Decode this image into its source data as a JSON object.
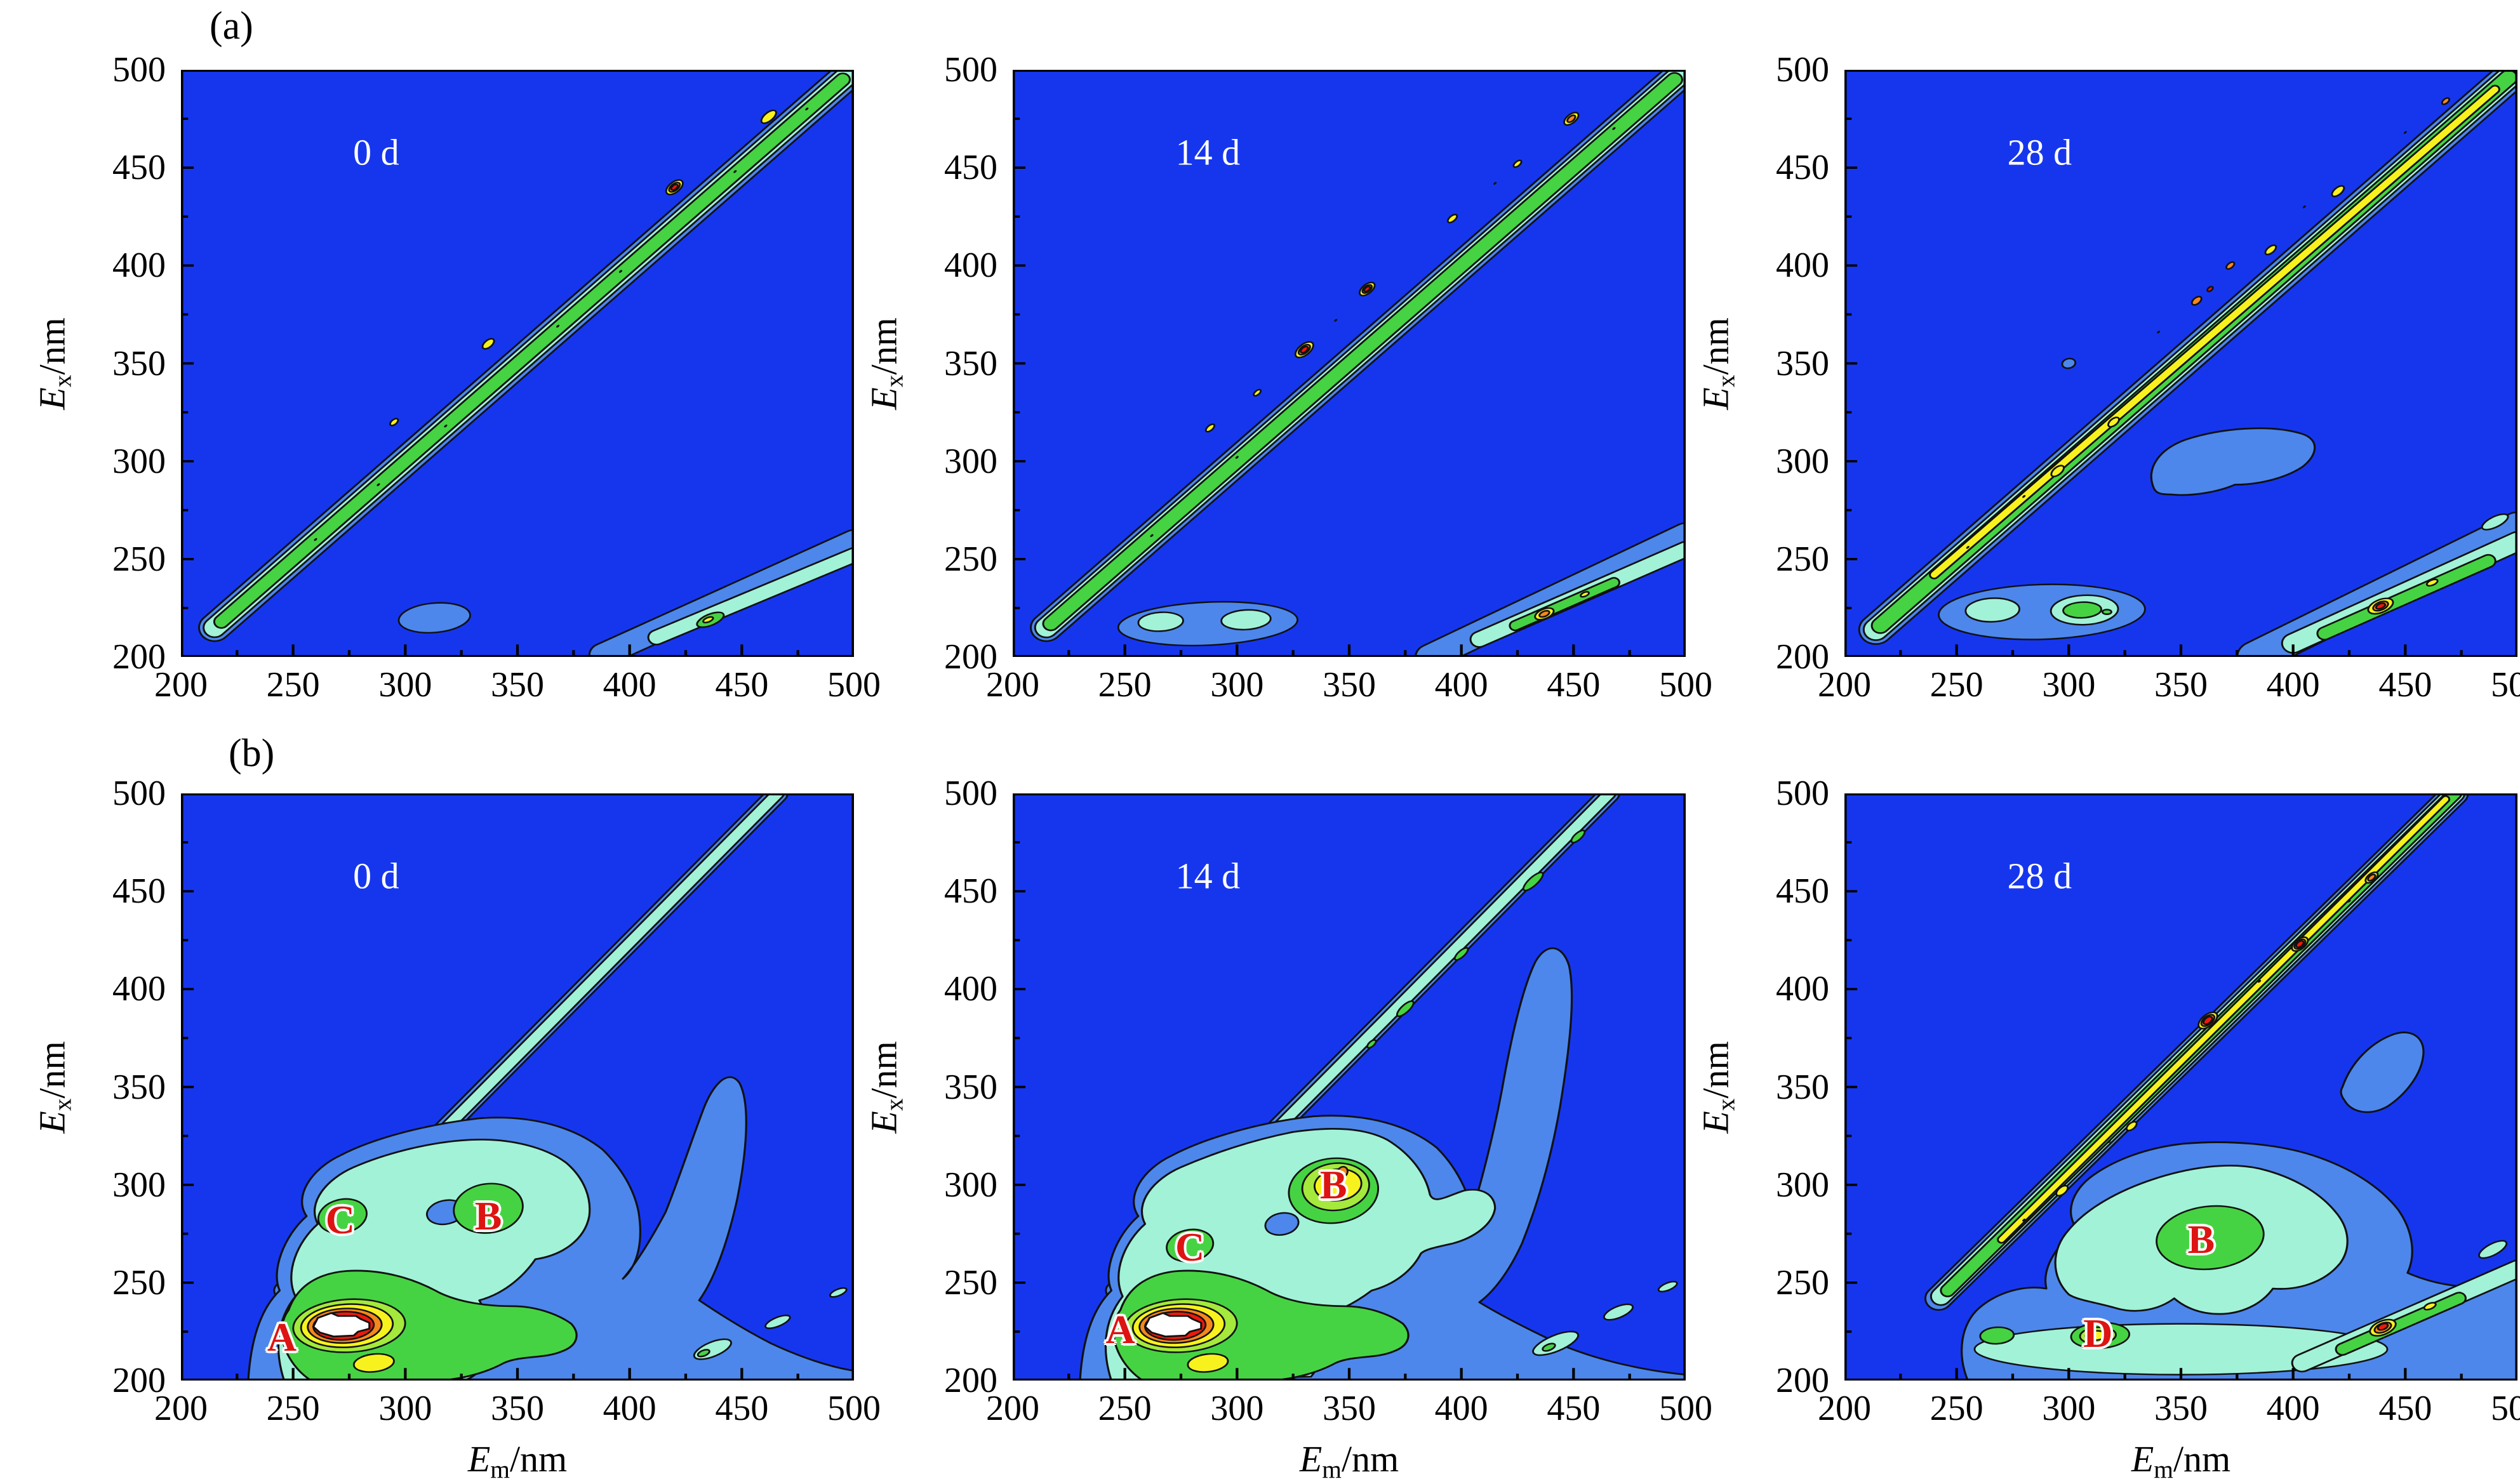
{
  "figure": {
    "row_labels": [
      {
        "text": "(a)"
      },
      {
        "text": "(b)"
      }
    ]
  },
  "axes": {
    "x_title": {
      "symbol": "E",
      "subscript": "m",
      "unit": "/nm"
    },
    "y_title": {
      "symbol": "E",
      "subscript": "x",
      "unit": "/nm"
    },
    "x_ticks": [
      "200",
      "250",
      "300",
      "350",
      "400",
      "450",
      "500"
    ],
    "y_ticks": [
      "200",
      "250",
      "300",
      "350",
      "400",
      "450",
      "500"
    ],
    "x_range": [
      200,
      500
    ],
    "y_range": [
      200,
      500
    ],
    "minor_tick_step_nm": 25,
    "major_tick_step_nm": 50
  },
  "colormap": {
    "description": "contour fill levels, low to high intensity",
    "levels": [
      "#1636ee",
      "#4d87ec",
      "#a2f2d8",
      "#46d343",
      "#a4e93b",
      "#f7f21e",
      "#f5871c",
      "#ee190b",
      "#ffffff"
    ],
    "contour_line_color": "#111111",
    "peak_label_color": "#dd1411"
  },
  "panels": [
    {
      "id": "a-0d",
      "row": "a",
      "day_label": "0 d",
      "peaks": []
    },
    {
      "id": "a-14d",
      "row": "a",
      "day_label": "14 d",
      "peaks": []
    },
    {
      "id": "a-28d",
      "row": "a",
      "day_label": "28 d",
      "peaks": []
    },
    {
      "id": "b-0d",
      "row": "b",
      "day_label": "0 d",
      "peaks": [
        {
          "text": "A",
          "em": 245,
          "ex": 222
        },
        {
          "text": "C",
          "em": 271,
          "ex": 282
        },
        {
          "text": "B",
          "em": 337,
          "ex": 284
        }
      ]
    },
    {
      "id": "b-14d",
      "row": "b",
      "day_label": "14 d",
      "peaks": [
        {
          "text": "A",
          "em": 248,
          "ex": 226
        },
        {
          "text": "C",
          "em": 279,
          "ex": 268
        },
        {
          "text": "B",
          "em": 343,
          "ex": 300
        }
      ]
    },
    {
      "id": "b-28d",
      "row": "b",
      "day_label": "28 d",
      "peaks": [
        {
          "text": "B",
          "em": 359,
          "ex": 272
        },
        {
          "text": "D",
          "em": 313,
          "ex": 224
        }
      ]
    }
  ],
  "chart_data": [
    {
      "panel": "(a) 0 d",
      "type": "heatmap",
      "subtype": "EEM fluorescence contour",
      "xlabel": "Em/nm",
      "ylabel": "Ex/nm",
      "xlim": [
        200,
        500
      ],
      "ylim": [
        200,
        500
      ],
      "x_ticks": [
        200,
        250,
        300,
        350,
        400,
        450,
        500
      ],
      "y_ticks": [
        200,
        250,
        300,
        350,
        400,
        450,
        500
      ],
      "features": [
        {
          "name": "first-order Rayleigh scatter band",
          "track": "Em ≈ Ex, from (215,240) to (500,500)",
          "core": "green",
          "hotspots": [
            {
              "em": 340,
              "ex": 362,
              "level": "yellow"
            },
            {
              "em": 420,
              "ex": 440,
              "level": "red"
            },
            {
              "em": 462,
              "ex": 478,
              "level": "yellow"
            }
          ]
        },
        {
          "name": "second-order Rayleigh scatter band",
          "track": "Em ≈ 2×Ex, from (390,200) to (500,250)",
          "hotspots": [
            {
              "em": 436,
              "ex": 219,
              "level": "green/yellow"
            }
          ]
        },
        {
          "name": "weak blob",
          "em": 313,
          "ex": 220,
          "level": "light blue"
        }
      ]
    },
    {
      "panel": "(a) 14 d",
      "type": "heatmap",
      "subtype": "EEM fluorescence contour",
      "xlabel": "Em/nm",
      "ylabel": "Ex/nm",
      "xlim": [
        200,
        500
      ],
      "ylim": [
        200,
        500
      ],
      "features": [
        {
          "name": "first-order Rayleigh scatter band",
          "track": "Em ≈ Ex",
          "hotspots": [
            {
              "em": 330,
              "ex": 357,
              "level": "red"
            },
            {
              "em": 358,
              "ex": 388,
              "level": "red"
            },
            {
              "em": 449,
              "ex": 475,
              "level": "orange"
            }
          ]
        },
        {
          "name": "second-order Rayleigh scatter band",
          "track": "Em ≈ 2×Ex",
          "hotspots": [
            {
              "em": 437,
              "ex": 222,
              "level": "yellow/orange"
            }
          ]
        },
        {
          "name": "weak double blob",
          "em": 268,
          "ex": 218,
          "level": "cyan cores in light blue"
        },
        {
          "name": "weak double blob",
          "em": 305,
          "ex": 219,
          "level": "cyan cores in light blue"
        }
      ]
    },
    {
      "panel": "(a) 28 d",
      "type": "heatmap",
      "subtype": "EEM fluorescence contour",
      "xlabel": "Em/nm",
      "ylabel": "Ex/nm",
      "xlim": [
        200,
        500
      ],
      "ylim": [
        200,
        500
      ],
      "features": [
        {
          "name": "first-order Rayleigh scatter band",
          "track": "Em ≈ Ex",
          "core": "continuous yellow",
          "hotspots": [
            {
              "em": 357,
              "ex": 382,
              "level": "orange"
            },
            {
              "em": 372,
              "ex": 400,
              "level": "orange"
            },
            {
              "em": 468,
              "ex": 484,
              "level": "orange"
            }
          ]
        },
        {
          "name": "second-order Rayleigh scatter band",
          "track": "Em ≈ 2×Ex",
          "hotspots": [
            {
              "em": 439,
              "ex": 226,
              "level": "red"
            }
          ]
        },
        {
          "name": "blob",
          "em": 372,
          "ex": 304,
          "level": "light blue"
        },
        {
          "name": "blob",
          "em": 266,
          "ex": 224,
          "level": "cyan"
        },
        {
          "name": "blob",
          "em": 306,
          "ex": 224,
          "level": "green"
        }
      ]
    },
    {
      "panel": "(b) 0 d",
      "type": "heatmap",
      "subtype": "EEM fluorescence contour",
      "xlabel": "Em/nm",
      "ylabel": "Ex/nm",
      "xlim": [
        200,
        500
      ],
      "ylim": [
        200,
        500
      ],
      "peaks": [
        {
          "label": "A",
          "em": 270,
          "ex": 228,
          "intensity": "saturated white core with red/orange/yellow rings"
        },
        {
          "label": "B",
          "em": 338,
          "ex": 288,
          "intensity": "green"
        },
        {
          "label": "C",
          "em": 272,
          "ex": 284,
          "intensity": "green"
        }
      ],
      "features": [
        {
          "name": "first-order Rayleigh scatter band",
          "track": "Em ≈ Ex, thin cyan"
        },
        {
          "name": "second-order Rayleigh scatter band",
          "track": "Em ≈ 2×Ex",
          "hotspots": [
            {
              "em": 434,
              "ex": 215,
              "level": "green"
            }
          ]
        },
        {
          "name": "broad humic/protein envelope",
          "extent": "Em 230-440, Ex 200-330",
          "level": "light blue with cyan interior"
        }
      ]
    },
    {
      "panel": "(b) 14 d",
      "type": "heatmap",
      "subtype": "EEM fluorescence contour",
      "xlabel": "Em/nm",
      "ylabel": "Ex/nm",
      "xlim": [
        200,
        500
      ],
      "ylim": [
        200,
        500
      ],
      "peaks": [
        {
          "label": "A",
          "em": 272,
          "ex": 228,
          "intensity": "saturated white core with red/orange/yellow rings"
        },
        {
          "label": "B",
          "em": 345,
          "ex": 300,
          "intensity": "yellow with small orange core"
        },
        {
          "label": "C",
          "em": 279,
          "ex": 269,
          "intensity": "green"
        }
      ],
      "features": [
        {
          "name": "first-order Rayleigh scatter band",
          "track": "Em ≈ Ex, cyan with green patches"
        },
        {
          "name": "second-order Rayleigh scatter band",
          "track": "Em ≈ 2×Ex",
          "hotspots": [
            {
              "em": 439,
              "ex": 217,
              "level": "green"
            }
          ]
        },
        {
          "name": "envelope wing",
          "extent": "rises to Em≈430, Ex≈415",
          "level": "light blue"
        }
      ]
    },
    {
      "panel": "(b) 28 d",
      "type": "heatmap",
      "subtype": "EEM fluorescence contour",
      "xlabel": "Em/nm",
      "ylabel": "Ex/nm",
      "xlim": [
        200,
        500
      ],
      "ylim": [
        200,
        500
      ],
      "peaks": [
        {
          "label": "B",
          "em": 363,
          "ex": 272,
          "intensity": "green in cyan field"
        },
        {
          "label": "D",
          "em": 313,
          "ex": 223,
          "intensity": "green with yellow core"
        }
      ],
      "features": [
        {
          "name": "first-order Rayleigh scatter band",
          "track": "Em ≈ Ex, strong",
          "hotspots": [
            {
              "em": 362,
              "ex": 384,
              "level": "red"
            },
            {
              "em": 403,
              "ex": 423,
              "level": "red"
            },
            {
              "em": 435,
              "ex": 457,
              "level": "orange"
            }
          ]
        },
        {
          "name": "second-order Rayleigh scatter band",
          "track": "Em ≈ 2×Ex",
          "hotspots": [
            {
              "em": 440,
              "ex": 227,
              "level": "red"
            }
          ]
        },
        {
          "name": "small blob",
          "em": 268,
          "ex": 223,
          "level": "green"
        },
        {
          "name": "isolated blob",
          "em": 440,
          "ex": 359,
          "level": "light blue"
        }
      ]
    }
  ]
}
